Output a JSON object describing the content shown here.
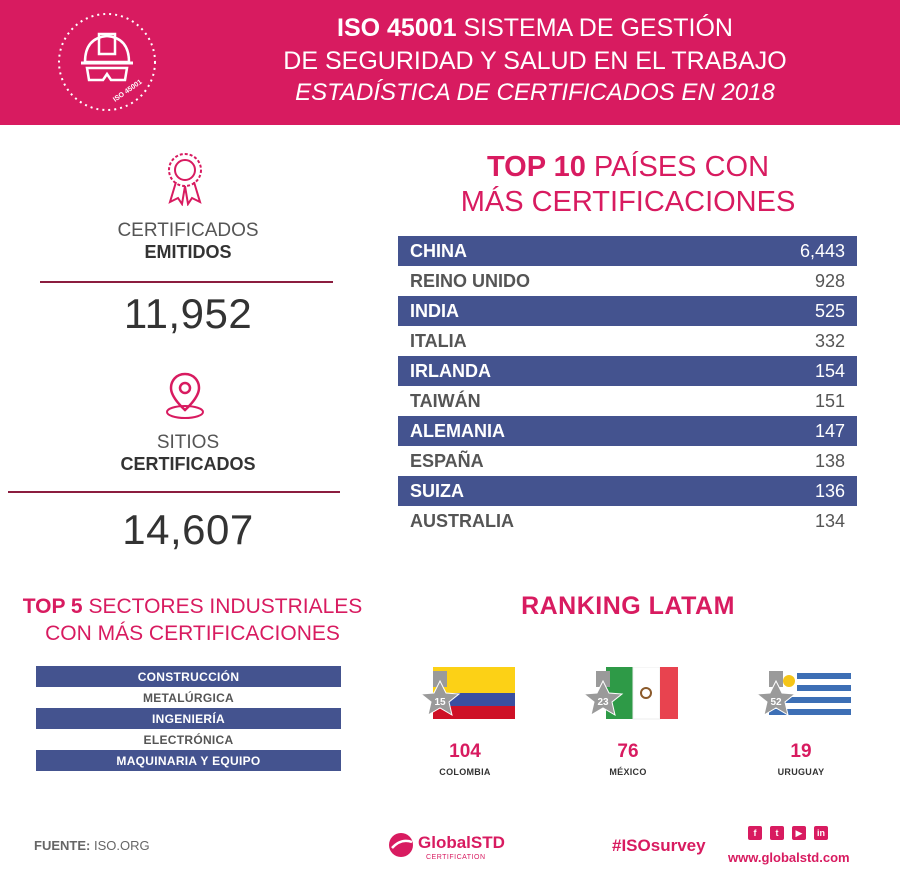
{
  "header": {
    "badge_text": "ISO 45001",
    "title_bold": "ISO 45001",
    "title_rest": " SISTEMA DE GESTIÓN",
    "title_line2": "DE SEGURIDAD Y SALUD EN EL TRABAJO",
    "subtitle": "ESTADÍSTICA DE CERTIFICADOS EN 2018"
  },
  "stats": {
    "certificates": {
      "label": "CERTIFICADOS",
      "label_bold": "EMITIDOS",
      "value": "11,952",
      "icon": "award-ribbon-icon"
    },
    "sites": {
      "label": "SITIOS",
      "label_bold": "CERTIFICADOS",
      "value": "14,607",
      "icon": "location-pin-icon"
    }
  },
  "top10": {
    "title_bold": "TOP 10",
    "title_rest": " PAÍSES CON",
    "title_line2": "MÁS CERTIFICACIONES",
    "rows": [
      {
        "country": "CHINA",
        "count": "6,443"
      },
      {
        "country": "REINO UNIDO",
        "count": "928"
      },
      {
        "country": "INDIA",
        "count": "525"
      },
      {
        "country": "ITALIA",
        "count": "332"
      },
      {
        "country": "IRLANDA",
        "count": "154"
      },
      {
        "country": "TAIWÁN",
        "count": "151"
      },
      {
        "country": "ALEMANIA",
        "count": "147"
      },
      {
        "country": "ESPAÑA",
        "count": "138"
      },
      {
        "country": "SUIZA",
        "count": "136"
      },
      {
        "country": "AUSTRALIA",
        "count": "134"
      }
    ]
  },
  "top5": {
    "title_bold": "TOP 5",
    "title_rest": " SECTORES INDUSTRIALES",
    "title_line2": "CON MÁS CERTIFICACIONES",
    "sectors": [
      "CONSTRUCCIÓN",
      "METALÚRGICA",
      "INGENIERÍA",
      "ELECTRÓNICA",
      "MAQUINARIA Y EQUIPO"
    ]
  },
  "latam": {
    "title": "RANKING LATAM",
    "countries": [
      {
        "rank": "15",
        "value": "104",
        "name": "COLOMBIA",
        "flag": "colombia-flag"
      },
      {
        "rank": "23",
        "value": "76",
        "name": "MÉXICO",
        "flag": "mexico-flag"
      },
      {
        "rank": "52",
        "value": "19",
        "name": "URUGUAY",
        "flag": "uruguay-flag"
      }
    ]
  },
  "footer": {
    "source_label": "FUENTE:",
    "source_value": " ISO.ORG",
    "logo_text": "GlobalSTD",
    "logo_sub": "CERTIFICATION",
    "hashtag": "#ISOsurvey",
    "website": "www.globalstd.com",
    "socials": [
      {
        "icon": "facebook-icon",
        "glyph": "f"
      },
      {
        "icon": "twitter-icon",
        "glyph": "t"
      },
      {
        "icon": "youtube-icon",
        "glyph": "▶"
      },
      {
        "icon": "linkedin-icon",
        "glyph": "in"
      }
    ]
  },
  "colors": {
    "brand_pink": "#d81b60",
    "table_blue": "#44538f",
    "rule_maroon": "#8b1d3f"
  }
}
